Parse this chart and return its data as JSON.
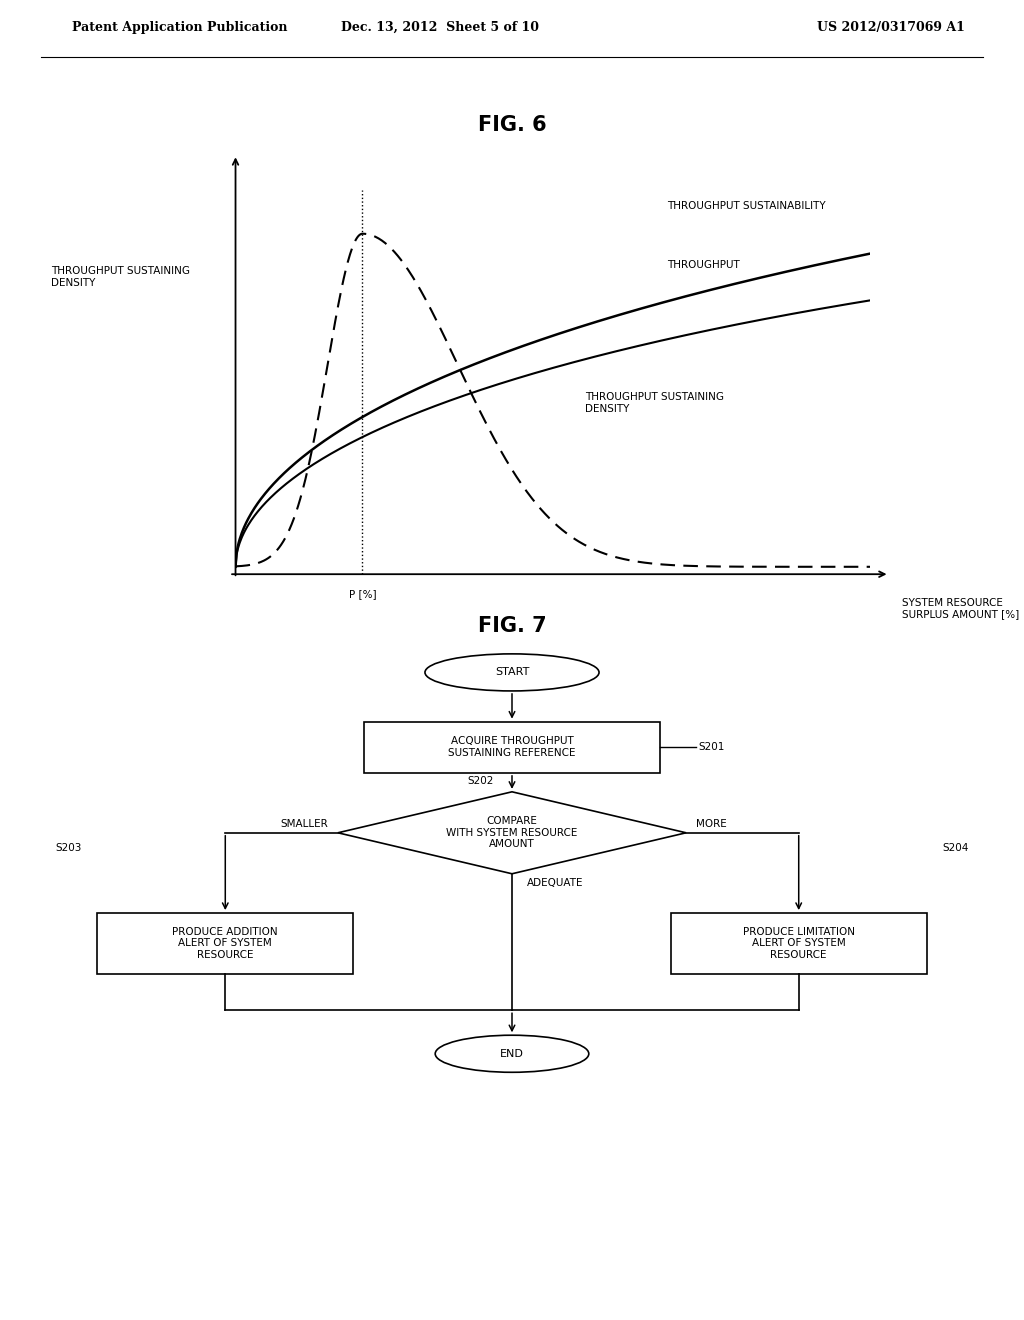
{
  "header_left": "Patent Application Publication",
  "header_center": "Dec. 13, 2012  Sheet 5 of 10",
  "header_right": "US 2012/0317069 A1",
  "fig6_title": "FIG. 6",
  "fig6_ylabel": "THROUGHPUT SUSTAINING\nDENSITY",
  "fig6_xlabel": "SYSTEM RESOURCE\nSURPLUS AMOUNT [%]",
  "fig6_p_label": "P [%]",
  "fig6_label_sustainability": "THROUGHPUT SUSTAINABILITY",
  "fig6_label_throughput": "THROUGHPUT",
  "fig6_label_density": "THROUGHPUT SUSTAINING\nDENSITY",
  "fig7_title": "FIG. 7",
  "flowchart": {
    "start_label": "START",
    "s201_label": "S201",
    "box1_label": "ACQUIRE THROUGHPUT\nSUSTAINING REFERENCE",
    "s202_label": "S202",
    "diamond_label": "COMPARE\nWITH SYSTEM RESOURCE\nAMOUNT",
    "smaller_label": "SMALLER",
    "more_label": "MORE",
    "adequate_label": "ADEQUATE",
    "s203_label": "S203",
    "s204_label": "S204",
    "box2_label": "PRODUCE ADDITION\nALERT OF SYSTEM\nRESOURCE",
    "box3_label": "PRODUCE LIMITATION\nALERT OF SYSTEM\nRESOURCE",
    "end_label": "END"
  },
  "bg_color": "#ffffff",
  "line_color": "#000000",
  "font_size_header": 9,
  "font_size_fig6": 15,
  "font_size_fig7": 15,
  "font_size_graph_label": 7.5,
  "font_size_flow": 7.5
}
